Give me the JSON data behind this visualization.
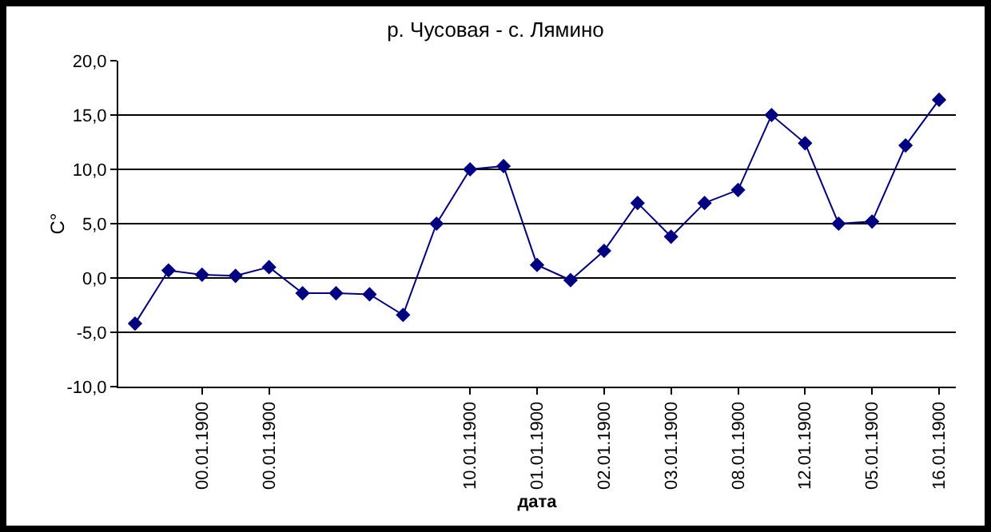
{
  "chart_data": {
    "type": "line",
    "title": "р. Чусовая - с. Лямино",
    "xlabel": "дата",
    "ylabel": "C°",
    "categories": [
      null,
      null,
      "00.01.1900",
      null,
      "00.01.1900",
      null,
      null,
      null,
      null,
      null,
      "10.01.1900",
      null,
      "01.01.1900",
      null,
      "02.01.1900",
      null,
      "03.01.1900",
      null,
      "08.01.1900",
      null,
      "12.01.1900",
      null,
      "05.01.1900",
      null,
      "16.01.1900"
    ],
    "series": [
      {
        "color": "#000080",
        "values": [
          -4.2,
          0.7,
          0.3,
          0.2,
          1.0,
          -1.4,
          -1.4,
          -1.5,
          -3.4,
          5.0,
          10.0,
          10.3,
          1.2,
          -0.2,
          2.5,
          6.9,
          3.8,
          6.9,
          8.1,
          15.0,
          12.4,
          5.0,
          5.2,
          12.2,
          16.4
        ]
      }
    ],
    "ylim": [
      -10,
      20
    ],
    "yticks": [
      {
        "value": -10,
        "label": "-10,0"
      },
      {
        "value": -5,
        "label": "-5,0"
      },
      {
        "value": 0,
        "label": "0,0"
      },
      {
        "value": 5,
        "label": "5,0"
      },
      {
        "value": 10,
        "label": "10,0"
      },
      {
        "value": 15,
        "label": "15,0"
      },
      {
        "value": 20,
        "label": "20,0"
      }
    ],
    "grid": "y",
    "legend": false,
    "marker": "diamond",
    "line_style": "solid"
  }
}
